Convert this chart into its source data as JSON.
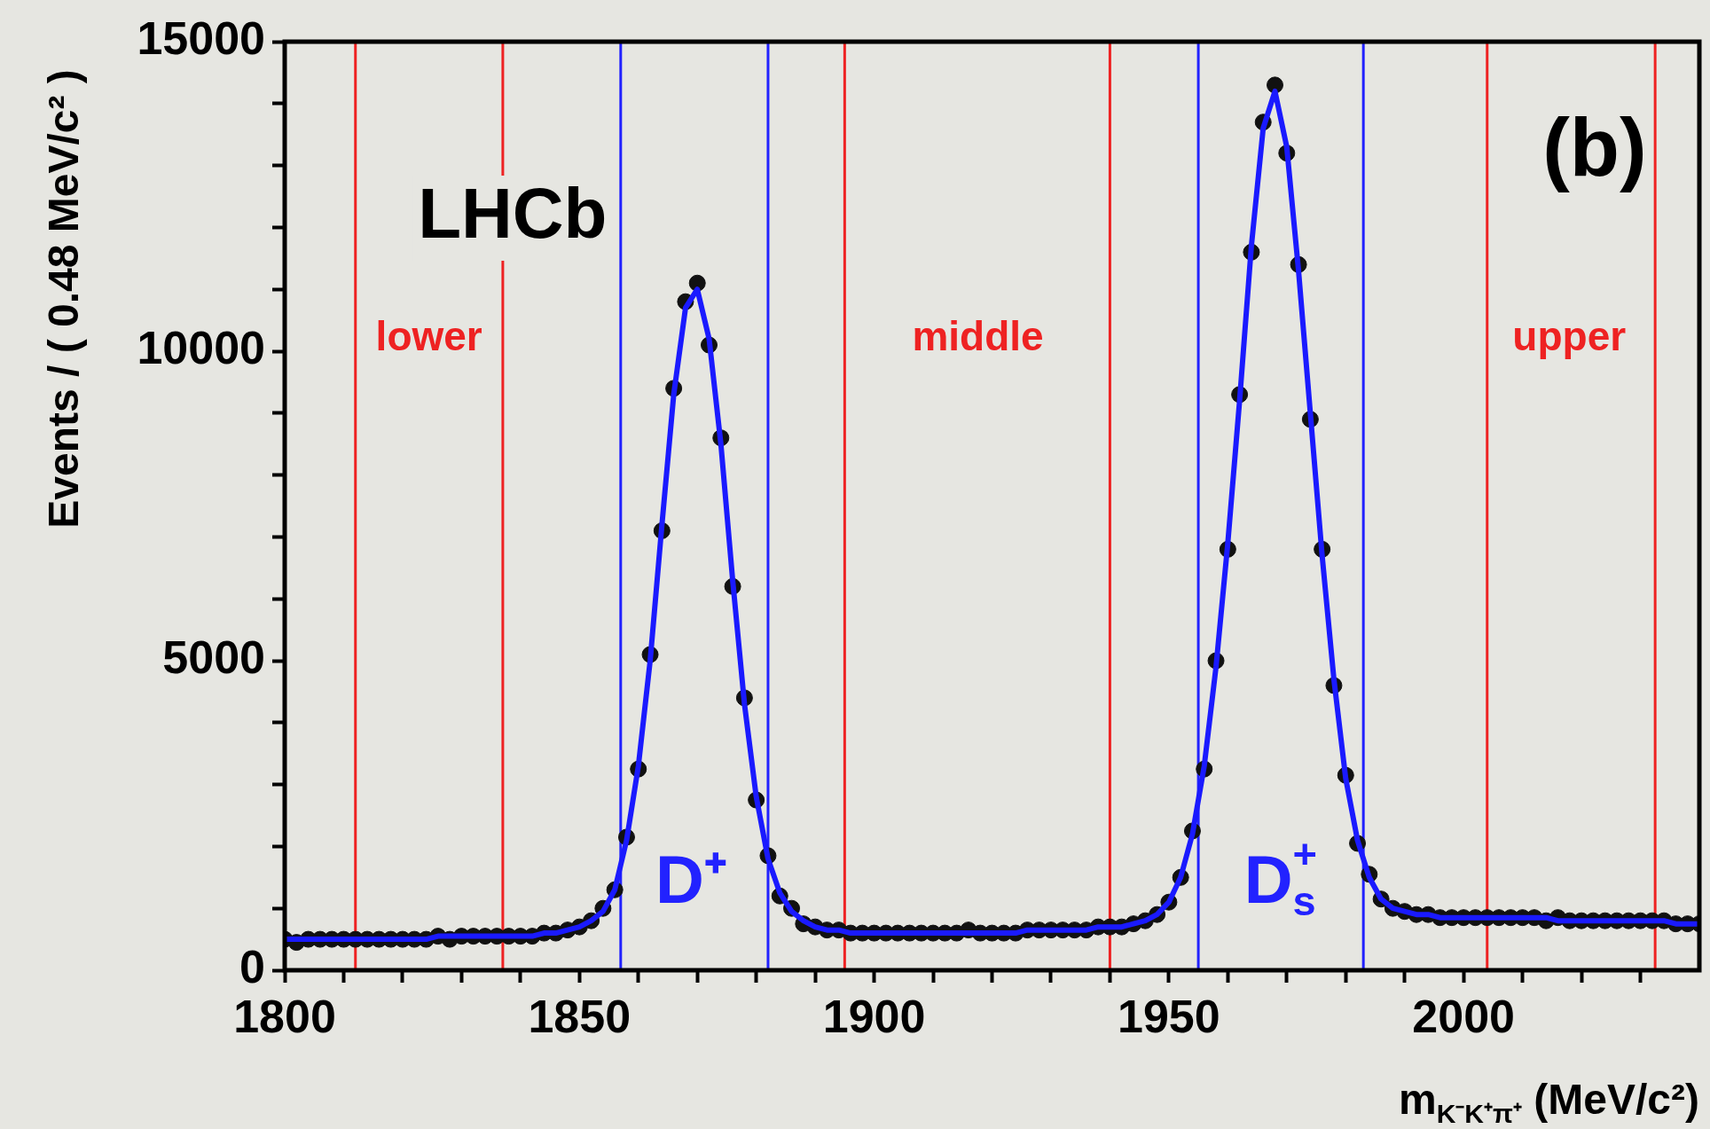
{
  "chart_data": {
    "type": "scatter",
    "xlabel": "m$_{K⁻K⁺π⁺}$ (MeV/c²)",
    "ylabel": "Events / ( 0.48 MeV/c² )",
    "xlim": [
      1800,
      2040
    ],
    "xticks": [
      1800,
      {
        "value": 1810,
        "label": null
      },
      {
        "value": 1820,
        "label": null
      },
      {
        "value": 1830,
        "label": null
      },
      {
        "value": 1840,
        "label": null
      },
      1850,
      {
        "value": 1860,
        "label": null
      },
      {
        "value": 1870,
        "label": null
      },
      {
        "value": 1880,
        "label": null
      },
      {
        "value": 1890,
        "label": null
      },
      1900,
      {
        "value": 1910,
        "label": null
      },
      {
        "value": 1920,
        "label": null
      },
      {
        "value": 1930,
        "label": null
      },
      {
        "value": 1940,
        "label": null
      },
      1950,
      {
        "value": 1960,
        "label": null
      },
      {
        "value": 1970,
        "label": null
      },
      {
        "value": 1980,
        "label": null
      },
      {
        "value": 1990,
        "label": null
      },
      2000,
      {
        "value": 2010,
        "label": null
      },
      {
        "value": 2020,
        "label": null
      },
      {
        "value": 2030,
        "label": null
      }
    ],
    "ylim": [
      0,
      15000
    ],
    "yticks": [
      0,
      {
        "value": 1000,
        "label": null
      },
      {
        "value": 2000,
        "label": null
      },
      {
        "value": 3000,
        "label": null
      },
      {
        "value": 4000,
        "label": null
      },
      5000,
      {
        "value": 6000,
        "label": null
      },
      {
        "value": 7000,
        "label": null
      },
      {
        "value": 8000,
        "label": null
      },
      {
        "value": 9000,
        "label": null
      },
      10000,
      {
        "value": 11000,
        "label": null
      },
      {
        "value": 12000,
        "label": null
      },
      {
        "value": 13000,
        "label": null
      },
      {
        "value": 14000,
        "label": null
      },
      15000
    ],
    "line_style": "solid",
    "x": [
      1800,
      1802,
      1804,
      1806,
      1808,
      1810,
      1812,
      1814,
      1816,
      1818,
      1820,
      1822,
      1824,
      1826,
      1828,
      1830,
      1832,
      1834,
      1836,
      1838,
      1840,
      1842,
      1844,
      1846,
      1848,
      1850,
      1852,
      1854,
      1856,
      1858,
      1860,
      1862,
      1864,
      1866,
      1868,
      1870,
      1872,
      1874,
      1876,
      1878,
      1880,
      1882,
      1884,
      1886,
      1888,
      1890,
      1892,
      1894,
      1896,
      1898,
      1900,
      1902,
      1904,
      1906,
      1908,
      1910,
      1912,
      1914,
      1916,
      1918,
      1920,
      1922,
      1924,
      1926,
      1928,
      1930,
      1932,
      1934,
      1936,
      1938,
      1940,
      1942,
      1944,
      1946,
      1948,
      1950,
      1952,
      1954,
      1956,
      1958,
      1960,
      1962,
      1964,
      1966,
      1968,
      1970,
      1972,
      1974,
      1976,
      1978,
      1980,
      1982,
      1984,
      1986,
      1988,
      1990,
      1992,
      1994,
      1996,
      1998,
      2000,
      2002,
      2004,
      2006,
      2008,
      2010,
      2012,
      2014,
      2016,
      2018,
      2020,
      2022,
      2024,
      2026,
      2028,
      2030,
      2032,
      2034,
      2036,
      2038,
      2040
    ],
    "series": [
      {
        "color": "#111111",
        "marker": "circle",
        "values": [
          500,
          450,
          500,
          500,
          500,
          500,
          500,
          500,
          500,
          500,
          500,
          500,
          500,
          550,
          500,
          550,
          550,
          550,
          550,
          550,
          550,
          550,
          600,
          600,
          650,
          700,
          800,
          1000,
          1300,
          2150,
          3250,
          5100,
          7100,
          9400,
          10800,
          11100,
          10100,
          8600,
          6200,
          4400,
          2750,
          1850,
          1200,
          1000,
          750,
          700,
          650,
          650,
          600,
          600,
          600,
          600,
          600,
          600,
          600,
          600,
          600,
          600,
          650,
          600,
          600,
          600,
          600,
          650,
          650,
          650,
          650,
          650,
          650,
          700,
          700,
          700,
          750,
          800,
          900,
          1100,
          1500,
          2250,
          3250,
          5000,
          6800,
          9300,
          11600,
          13700,
          14300,
          13200,
          11400,
          8900,
          6800,
          4600,
          3150,
          2050,
          1550,
          1150,
          1000,
          950,
          900,
          900,
          850,
          850,
          850,
          850,
          850,
          850,
          850,
          850,
          850,
          800,
          850,
          800,
          800,
          800,
          800,
          800,
          800,
          800,
          800,
          800,
          750,
          750,
          750
        ]
      },
      {
        "type": "line",
        "color": "#1a1aff",
        "values": [
          500,
          500,
          500,
          500,
          500,
          500,
          500,
          500,
          500,
          500,
          500,
          500,
          500,
          550,
          550,
          550,
          550,
          550,
          550,
          550,
          550,
          550,
          600,
          600,
          650,
          700,
          800,
          950,
          1300,
          2100,
          3300,
          5000,
          7200,
          9300,
          10700,
          11000,
          10200,
          8500,
          6300,
          4300,
          2800,
          1800,
          1250,
          950,
          800,
          700,
          650,
          650,
          600,
          600,
          600,
          600,
          600,
          600,
          600,
          600,
          600,
          600,
          600,
          600,
          600,
          600,
          600,
          650,
          650,
          650,
          650,
          650,
          650,
          700,
          700,
          700,
          750,
          800,
          900,
          1100,
          1500,
          2200,
          3300,
          4900,
          6900,
          9200,
          11700,
          13600,
          14200,
          13300,
          11300,
          9000,
          6700,
          4700,
          3100,
          2100,
          1500,
          1150,
          1000,
          950,
          900,
          900,
          850,
          850,
          850,
          850,
          850,
          850,
          850,
          850,
          850,
          850,
          800,
          800,
          800,
          800,
          800,
          800,
          800,
          800,
          800,
          800,
          750,
          750,
          750
        ]
      }
    ],
    "ref_lines": [
      {
        "axis": "x",
        "value": 1812,
        "color": "#ee2222"
      },
      {
        "axis": "x",
        "value": 1837,
        "color": "#ee2222"
      },
      {
        "axis": "x",
        "value": 1895,
        "color": "#ee2222"
      },
      {
        "axis": "x",
        "value": 1940,
        "color": "#ee2222"
      },
      {
        "axis": "x",
        "value": 2004,
        "color": "#ee2222"
      },
      {
        "axis": "x",
        "value": 2032.5,
        "color": "#ee2222"
      },
      {
        "axis": "x",
        "value": 1857,
        "color": "#2222ff"
      },
      {
        "axis": "x",
        "value": 1882,
        "color": "#2222ff"
      },
      {
        "axis": "x",
        "value": 1955,
        "color": "#2222ff"
      },
      {
        "axis": "x",
        "value": 1983,
        "color": "#2222ff"
      }
    ],
    "annotations": [
      "LHCb",
      "(b)",
      "lower",
      "middle",
      "upper",
      "D⁺",
      "D$_{s}$$^{+}$"
    ],
    "grid": false,
    "legend": false
  }
}
